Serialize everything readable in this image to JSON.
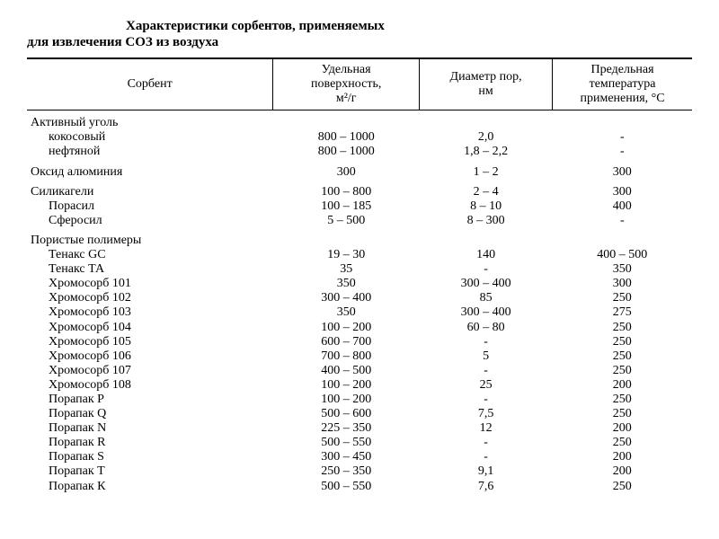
{
  "title_line1": "Характеристики сорбентов, применяемых",
  "title_line2": "для извлечения СОЗ из воздуха",
  "columns": {
    "c0": "Сорбент",
    "c1_l1": "Удельная",
    "c1_l2": "поверхность,",
    "c1_l3": "м²/г",
    "c2_l1": "Диаметр пор,",
    "c2_l2": "нм",
    "c3_l1": "Предельная",
    "c3_l2": "температура",
    "c3_l3": "применения, °С"
  },
  "groups": [
    {
      "header": "Активный уголь",
      "rows": [
        {
          "name": "кокосовый",
          "surf": "800 – 1000",
          "pore": "2,0",
          "temp": "-"
        },
        {
          "name": "нефтяной",
          "surf": "800 – 1000",
          "pore": "1,8 – 2,2",
          "temp": "-"
        }
      ]
    },
    {
      "header": "Оксид алюминия",
      "header_surf": "300",
      "header_pore": "1 – 2",
      "header_temp": "300",
      "rows": []
    },
    {
      "header": "Силикагели",
      "header_surf": "100 – 800",
      "header_pore": "2 – 4",
      "header_temp": "300",
      "rows": [
        {
          "name": "Порасил",
          "surf": "100 – 185",
          "pore": "8 – 10",
          "temp": "400"
        },
        {
          "name": "Сферосил",
          "surf": "5 – 500",
          "pore": "8 – 300",
          "temp": "-"
        }
      ]
    },
    {
      "header": "Пористые полимеры",
      "rows": [
        {
          "name": "Тенакс GC",
          "surf": "19 – 30",
          "pore": "140",
          "temp": "400 – 500"
        },
        {
          "name": "Тенакс ТА",
          "surf": "35",
          "pore": "-",
          "temp": "350"
        },
        {
          "name": "Хромосорб 101",
          "surf": "350",
          "pore": "300 – 400",
          "temp": "300"
        },
        {
          "name": "Хромосорб 102",
          "surf": "300 – 400",
          "pore": "85",
          "temp": "250"
        },
        {
          "name": "Хромосорб 103",
          "surf": "350",
          "pore": "300 – 400",
          "temp": "275"
        },
        {
          "name": "Хромосорб 104",
          "surf": "100 – 200",
          "pore": "60 – 80",
          "temp": "250"
        },
        {
          "name": "Хромосорб 105",
          "surf": "600 – 700",
          "pore": "-",
          "temp": "250"
        },
        {
          "name": "Хромосорб 106",
          "surf": "700 – 800",
          "pore": "5",
          "temp": "250"
        },
        {
          "name": "Хромосорб 107",
          "surf": "400 – 500",
          "pore": "-",
          "temp": "250"
        },
        {
          "name": "Хромосорб 108",
          "surf": "100 – 200",
          "pore": "25",
          "temp": "200"
        },
        {
          "name": "Порапак Р",
          "surf": "100 – 200",
          "pore": "-",
          "temp": "250"
        },
        {
          "name": "Порапак Q",
          "surf": "500 – 600",
          "pore": "7,5",
          "temp": "250"
        },
        {
          "name": "Порапак N",
          "surf": "225 – 350",
          "pore": "12",
          "temp": "200"
        },
        {
          "name": "Порапак R",
          "surf": "500 – 550",
          "pore": "-",
          "temp": "250"
        },
        {
          "name": "Порапак S",
          "surf": "300 – 450",
          "pore": "-",
          "temp": "200"
        },
        {
          "name": "Порапак Т",
          "surf": "250 – 350",
          "pore": "9,1",
          "temp": "200"
        },
        {
          "name": "Порапак К",
          "surf": "500 – 550",
          "pore": "7,6",
          "temp": "250"
        }
      ]
    }
  ]
}
